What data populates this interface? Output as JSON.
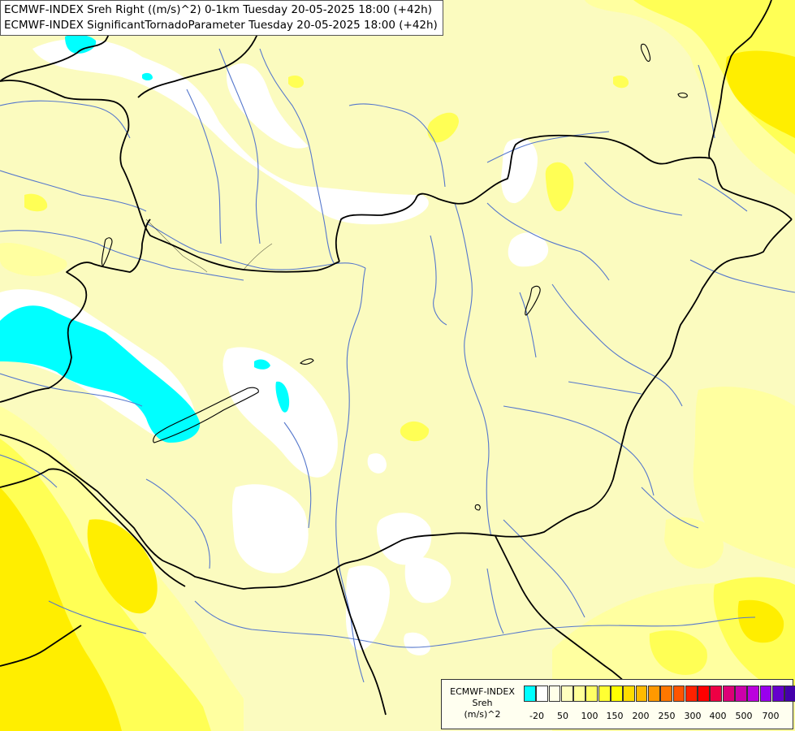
{
  "header": {
    "line1": "ECMWF-INDEX Sreh Right ((m/s)^2) 0-1km Tuesday 20-05-2025 18:00 (+42h)",
    "line2": "ECMWF-INDEX SignificantTornadoParameter Tuesday 20-05-2025 18:00 (+42h)"
  },
  "legend": {
    "title1": "ECMWF-INDEX",
    "title2": "Sreh",
    "title3": "(m/s)^2",
    "colors": [
      "#00ffff",
      "#ffffff",
      "#ffffe8",
      "#ffffbf",
      "#ffff99",
      "#ffff66",
      "#ffff33",
      "#ffff00",
      "#ffdd00",
      "#ffbb00",
      "#ff9900",
      "#ff7700",
      "#ff5500",
      "#ff2200",
      "#ff0000",
      "#ee0044",
      "#dd0077",
      "#cc00aa",
      "#bb00dd",
      "#9900ee",
      "#6600cc",
      "#4400aa",
      "#220088",
      "#000066"
    ],
    "ticks": [
      "-20",
      "50",
      "100",
      "150",
      "200",
      "250",
      "300",
      "400",
      "500",
      "700"
    ]
  },
  "map": {
    "background": "#fbfbbf",
    "palette": {
      "cyan": "#00ffff",
      "white": "#ffffff",
      "pale": "#fbfbbf",
      "light": "#ffffa0",
      "yellow": "#ffff55",
      "deep": "#ffee00",
      "border": "#000000",
      "river": "#5577cc"
    }
  }
}
